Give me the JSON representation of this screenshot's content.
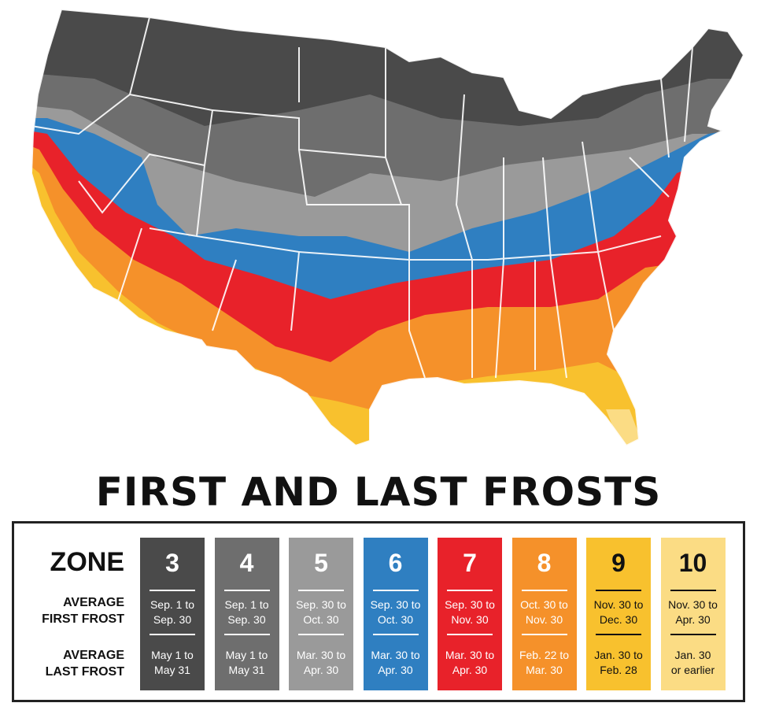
{
  "title": "FIRST AND LAST FROSTS",
  "legend": {
    "zone_heading": "ZONE",
    "first_frost_label": "AVERAGE\nFIRST FROST",
    "last_frost_label": "AVERAGE\nLAST FROST",
    "zones": [
      {
        "zone": "3",
        "first": "Sep. 1 to\nSep. 30",
        "last": "May 1 to\nMay 31",
        "color": "#4a4a4a",
        "text_color": "#ffffff",
        "rule_color": "#ffffff"
      },
      {
        "zone": "4",
        "first": "Sep. 1 to\nSep. 30",
        "last": "May 1 to\nMay 31",
        "color": "#6e6e6e",
        "text_color": "#ffffff",
        "rule_color": "#ffffff"
      },
      {
        "zone": "5",
        "first": "Sep. 30 to\nOct. 30",
        "last": "Mar. 30 to\nApr. 30",
        "color": "#9a9a9a",
        "text_color": "#ffffff",
        "rule_color": "#ffffff"
      },
      {
        "zone": "6",
        "first": "Sep. 30 to\nOct. 30",
        "last": "Mar. 30 to\nApr. 30",
        "color": "#2f7fc1",
        "text_color": "#ffffff",
        "rule_color": "#ffffff"
      },
      {
        "zone": "7",
        "first": "Sep. 30 to\nNov. 30",
        "last": "Mar. 30 to\nApr. 30",
        "color": "#e8222a",
        "text_color": "#ffffff",
        "rule_color": "#ffffff"
      },
      {
        "zone": "8",
        "first": "Oct. 30 to\nNov. 30",
        "last": "Feb. 22 to\nMar. 30",
        "color": "#f5912a",
        "text_color": "#ffffff",
        "rule_color": "#ffffff"
      },
      {
        "zone": "9",
        "first": "Nov. 30 to\nDec. 30",
        "last": "Jan. 30 to\nFeb. 28",
        "color": "#f8c12e",
        "text_color": "#111111",
        "rule_color": "#111111"
      },
      {
        "zone": "10",
        "first": "Nov. 30 to\nApr. 30",
        "last": "Jan. 30\nor earlier",
        "color": "#fbdc84",
        "text_color": "#111111",
        "rule_color": "#111111"
      }
    ]
  },
  "map": {
    "zone_colors": {
      "z3": "#4a4a4a",
      "z4": "#6e6e6e",
      "z5": "#9a9a9a",
      "z6": "#2f7fc1",
      "z7": "#e8222a",
      "z8": "#f5912a",
      "z9": "#f8c12e",
      "z10": "#fbdc84"
    }
  }
}
